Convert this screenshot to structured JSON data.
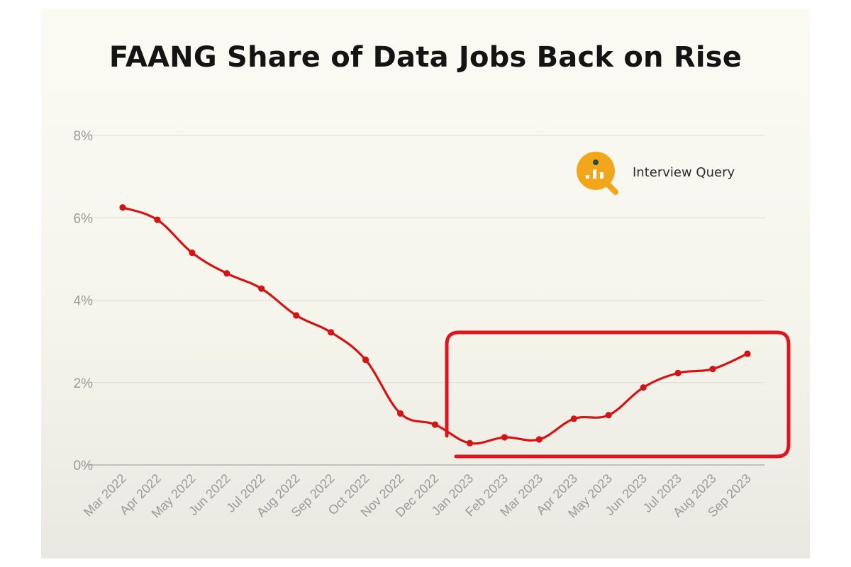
{
  "title": "FAANG Share of Data Jobs Back on Rise",
  "brand": {
    "name": "Interview Query",
    "icon": "magnifier-chart-icon",
    "color": "#f3a61c"
  },
  "colors": {
    "line": "#d41414",
    "highlight": "#e0141e",
    "grid": "#dcdcd6",
    "tick": "#9a9a9a"
  },
  "chart_data": {
    "type": "line",
    "title": "FAANG Share of Data Jobs Back on Rise",
    "xlabel": "",
    "ylabel": "",
    "categories": [
      "Mar 2022",
      "Apr 2022",
      "May 2022",
      "Jun 2022",
      "Jul 2022",
      "Aug 2022",
      "Sep 2022",
      "Oct 2022",
      "Nov 2022",
      "Dec 2022",
      "Jan 2023",
      "Feb 2023",
      "Mar 2023",
      "Apr 2023",
      "May 2023",
      "Jun 2023",
      "Jul 2023",
      "Aug 2023",
      "Sep 2023"
    ],
    "series": [
      {
        "values": [
          6.25,
          5.95,
          5.15,
          4.65,
          4.28,
          3.63,
          3.22,
          2.55,
          1.25,
          0.98,
          0.53,
          0.67,
          0.62,
          1.12,
          1.21,
          1.88,
          2.23,
          2.33,
          2.7
        ]
      }
    ],
    "ylim": [
      0,
      8
    ],
    "yticks": [
      "0%",
      "2%",
      "4%",
      "6%",
      "8%"
    ],
    "ytick_values": [
      0,
      2,
      4,
      6,
      8
    ],
    "grid": true,
    "legend": "none",
    "annotation": "highlight box around Jan 2023 – Sep 2023"
  }
}
